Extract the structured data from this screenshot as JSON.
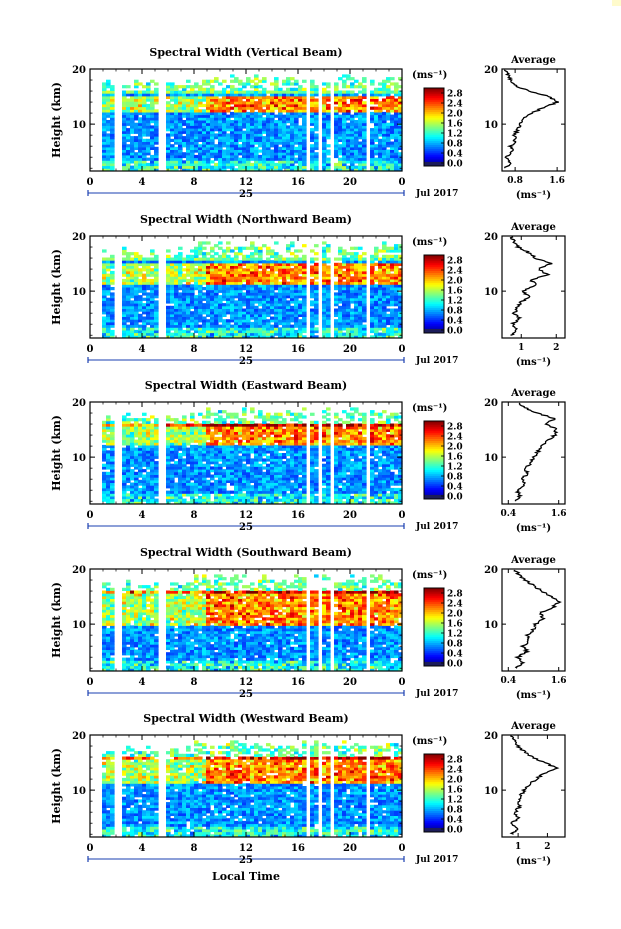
{
  "figure": {
    "xlabel": "Local Time",
    "date_label": "Jul 2017",
    "day_label": "25",
    "ylabel": "Height (km)",
    "cbar_unit": "(ms⁻¹)",
    "avg_title": "Average",
    "avg_xlabel": "(ms⁻¹)"
  },
  "chart_data": [
    {
      "type": "heatmap",
      "title": "Spectral Width (Vertical Beam)",
      "x_ticks": [
        "0",
        "4",
        "8",
        "12",
        "16",
        "20",
        "0"
      ],
      "x_range_hours": [
        0,
        24
      ],
      "y_ticks": [
        "20",
        "10"
      ],
      "ylim_km": [
        1.5,
        20
      ],
      "colorbar_ticks": [
        "2.8",
        "2.4",
        "2.0",
        "1.6",
        "1.2",
        "0.8",
        "0.4",
        "0.0"
      ],
      "colorbar_range": [
        0,
        3.0
      ],
      "data_gaps_hours": [
        [
          2.0,
          2.4
        ],
        [
          5.3,
          5.8
        ],
        [
          16.6,
          17.0
        ],
        [
          17.5,
          17.8
        ],
        [
          18.4,
          18.8
        ],
        [
          21.3,
          21.6
        ]
      ],
      "high_width_layer_km": [
        12,
        15
      ],
      "profile": {
        "title": "Average",
        "x_ticks": [
          "0.8",
          "1.6"
        ],
        "xlim": [
          0.55,
          1.75
        ],
        "y_ticks": [
          "20",
          "10"
        ],
        "height_km": [
          2,
          3,
          4,
          5,
          6,
          7,
          8,
          9,
          10,
          11,
          12,
          13,
          14,
          15,
          16,
          17,
          18,
          19,
          20
        ],
        "values": [
          0.62,
          0.7,
          0.62,
          0.75,
          0.72,
          0.8,
          0.78,
          0.86,
          0.9,
          0.98,
          1.1,
          1.35,
          1.6,
          1.45,
          1.05,
          0.82,
          0.72,
          0.65,
          0.6
        ]
      }
    },
    {
      "type": "heatmap",
      "title": "Spectral Width (Northward Beam)",
      "x_ticks": [
        "0",
        "4",
        "8",
        "12",
        "16",
        "20",
        "0"
      ],
      "x_range_hours": [
        0,
        24
      ],
      "y_ticks": [
        "20",
        "10"
      ],
      "ylim_km": [
        1.5,
        20
      ],
      "colorbar_ticks": [
        "2.8",
        "2.4",
        "2.0",
        "1.6",
        "1.2",
        "0.8",
        "0.4",
        "0.0"
      ],
      "colorbar_range": [
        0,
        3.0
      ],
      "data_gaps_hours": [
        [
          2.0,
          2.4
        ],
        [
          5.3,
          5.8
        ],
        [
          16.6,
          17.0
        ],
        [
          17.5,
          17.8
        ],
        [
          18.4,
          18.8
        ],
        [
          21.3,
          21.6
        ]
      ],
      "high_width_layer_km": [
        11,
        15
      ],
      "profile": {
        "title": "Average",
        "x_ticks": [
          "1",
          "2"
        ],
        "xlim": [
          0.45,
          2.25
        ],
        "y_ticks": [
          "20",
          "10"
        ],
        "height_km": [
          2,
          3,
          4,
          5,
          6,
          7,
          8,
          9,
          10,
          11,
          12,
          13,
          14,
          15,
          16,
          17,
          18,
          19,
          20
        ],
        "values": [
          0.7,
          0.9,
          0.75,
          0.95,
          0.8,
          0.9,
          1.0,
          1.2,
          1.05,
          1.4,
          1.3,
          1.75,
          1.5,
          1.85,
          1.4,
          1.2,
          0.9,
          0.8,
          0.7
        ]
      }
    },
    {
      "type": "heatmap",
      "title": "Spectral Width (Eastward Beam)",
      "x_ticks": [
        "0",
        "4",
        "8",
        "12",
        "16",
        "20",
        "0"
      ],
      "x_range_hours": [
        0,
        24
      ],
      "y_ticks": [
        "20",
        "10"
      ],
      "ylim_km": [
        1.5,
        20
      ],
      "colorbar_ticks": [
        "2.8",
        "2.4",
        "2.0",
        "1.6",
        "1.2",
        "0.8",
        "0.4",
        "0.0"
      ],
      "colorbar_range": [
        0,
        3.0
      ],
      "data_gaps_hours": [
        [
          2.0,
          2.4
        ],
        [
          5.3,
          5.8
        ],
        [
          16.6,
          17.0
        ],
        [
          17.5,
          17.8
        ],
        [
          18.4,
          18.8
        ],
        [
          21.3,
          21.6
        ]
      ],
      "high_width_layer_km": [
        12,
        16
      ],
      "profile": {
        "title": "Average",
        "x_ticks": [
          "0.4",
          "1.6"
        ],
        "xlim": [
          0.25,
          1.75
        ],
        "y_ticks": [
          "20",
          "10"
        ],
        "height_km": [
          2,
          3,
          4,
          5,
          6,
          7,
          8,
          9,
          10,
          11,
          12,
          13,
          14,
          15,
          16,
          17,
          18,
          19,
          20
        ],
        "values": [
          0.55,
          0.7,
          0.6,
          0.8,
          0.72,
          0.85,
          0.8,
          0.95,
          1.0,
          1.1,
          1.2,
          1.35,
          1.5,
          1.55,
          1.3,
          1.5,
          1.1,
          0.8,
          0.6
        ]
      }
    },
    {
      "type": "heatmap",
      "title": "Spectral Width (Southward Beam)",
      "x_ticks": [
        "0",
        "4",
        "8",
        "12",
        "16",
        "20",
        "0"
      ],
      "x_range_hours": [
        0,
        24
      ],
      "y_ticks": [
        "20",
        "10"
      ],
      "ylim_km": [
        1.5,
        20
      ],
      "colorbar_ticks": [
        "2.8",
        "2.4",
        "2.0",
        "1.6",
        "1.2",
        "0.8",
        "0.4",
        "0.0"
      ],
      "colorbar_range": [
        0,
        3.0
      ],
      "data_gaps_hours": [
        [
          2.0,
          2.4
        ],
        [
          5.3,
          5.8
        ],
        [
          16.6,
          17.0
        ],
        [
          17.5,
          17.8
        ],
        [
          18.4,
          18.8
        ],
        [
          21.3,
          21.6
        ]
      ],
      "high_width_layer_km": [
        10,
        16
      ],
      "profile": {
        "title": "Average",
        "x_ticks": [
          "0.4",
          "1.6"
        ],
        "xlim": [
          0.25,
          1.75
        ],
        "y_ticks": [
          "20",
          "10"
        ],
        "height_km": [
          2,
          3,
          4,
          5,
          6,
          7,
          8,
          9,
          10,
          11,
          12,
          13,
          14,
          15,
          16,
          17,
          18,
          19,
          20
        ],
        "values": [
          0.6,
          0.75,
          0.62,
          0.85,
          0.75,
          0.9,
          0.85,
          1.0,
          1.05,
          1.25,
          1.15,
          1.45,
          1.6,
          1.4,
          1.2,
          1.0,
          0.8,
          0.65,
          0.55
        ]
      }
    },
    {
      "type": "heatmap",
      "title": "Spectral Width (Westward Beam)",
      "x_ticks": [
        "0",
        "4",
        "8",
        "12",
        "16",
        "20",
        "0"
      ],
      "x_range_hours": [
        0,
        24
      ],
      "y_ticks": [
        "20",
        "10"
      ],
      "ylim_km": [
        1.5,
        20
      ],
      "colorbar_ticks": [
        "2.8",
        "2.4",
        "2.0",
        "1.6",
        "1.2",
        "0.8",
        "0.4",
        "0.0"
      ],
      "colorbar_range": [
        0,
        3.0
      ],
      "data_gaps_hours": [
        [
          2.0,
          2.4
        ],
        [
          5.3,
          5.8
        ],
        [
          16.6,
          17.0
        ],
        [
          17.5,
          17.8
        ],
        [
          18.4,
          18.8
        ],
        [
          21.3,
          21.6
        ]
      ],
      "high_width_layer_km": [
        11,
        16
      ],
      "profile": {
        "title": "Average",
        "x_ticks": [
          "1",
          "2"
        ],
        "xlim": [
          0.45,
          2.6
        ],
        "y_ticks": [
          "20",
          "10"
        ],
        "height_km": [
          2,
          3,
          4,
          5,
          6,
          7,
          8,
          9,
          10,
          11,
          12,
          13,
          14,
          15,
          16,
          17,
          18,
          19,
          20
        ],
        "values": [
          0.8,
          0.95,
          0.8,
          1.0,
          0.9,
          1.05,
          1.0,
          1.1,
          1.2,
          1.4,
          1.6,
          1.9,
          2.3,
          1.9,
          1.5,
          1.2,
          1.0,
          0.85,
          0.75
        ]
      }
    }
  ]
}
